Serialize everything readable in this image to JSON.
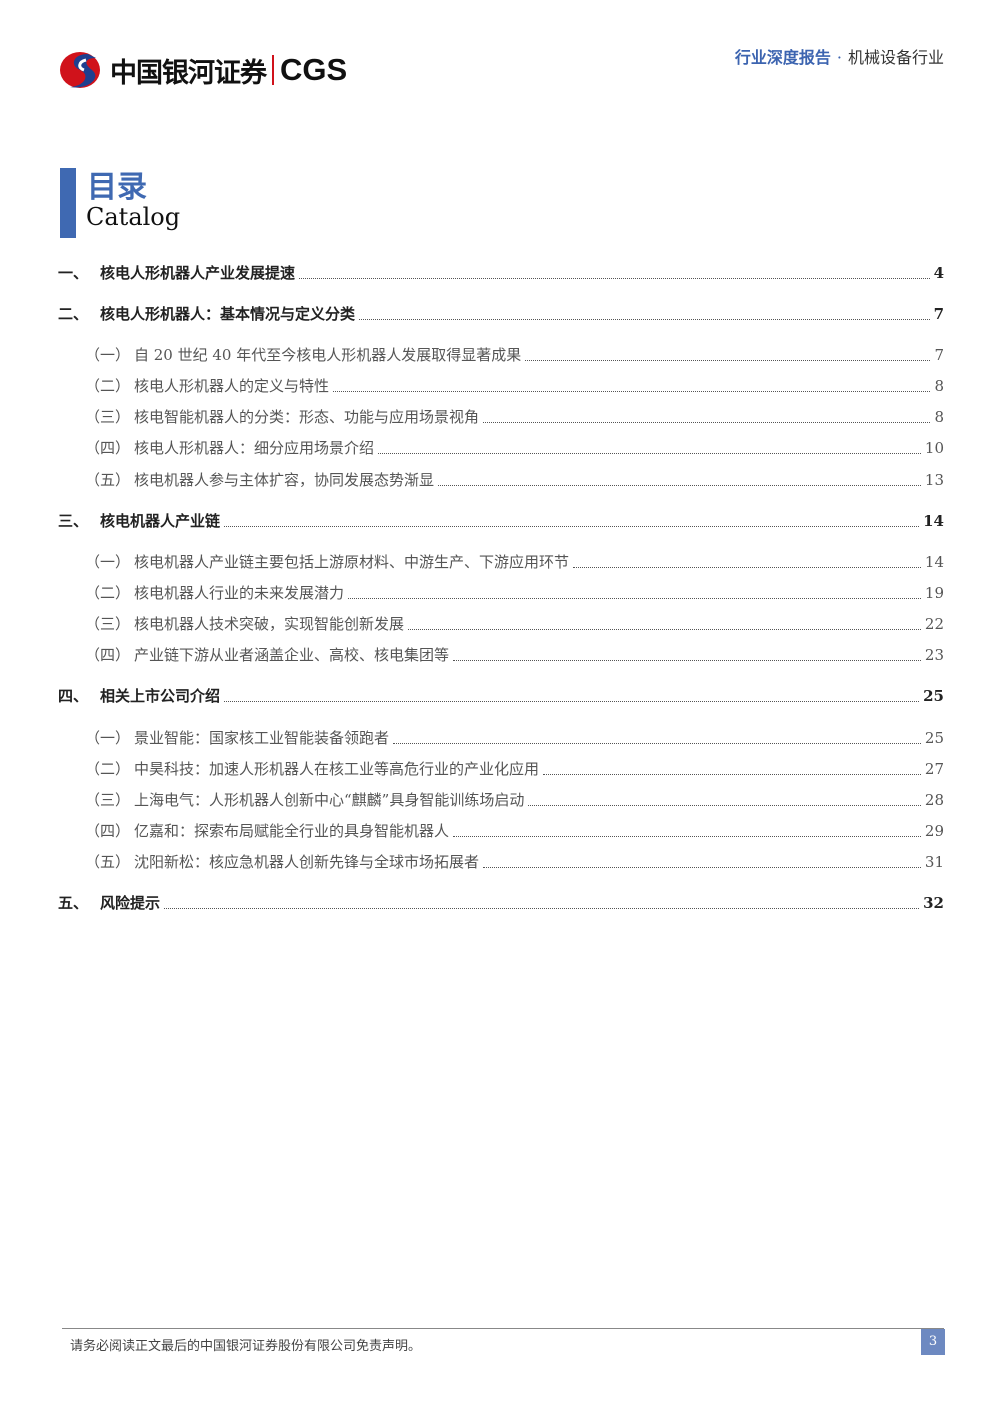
{
  "header": {
    "logo_cn": "中国银河证券",
    "logo_en": "CGS",
    "report_type": "行业深度报告",
    "separator": "·",
    "industry": "机械设备行业"
  },
  "title": {
    "cn": "目录",
    "en": "Catalog"
  },
  "toc": [
    {
      "level": 1,
      "num": "一、",
      "text": "核电人形机器人产业发展提速",
      "page": "4"
    },
    {
      "level": 1,
      "num": "二、",
      "text": "核电人形机器人：基本情况与定义分类",
      "page": "7"
    },
    {
      "level": 2,
      "num": "（一）",
      "text": "自 20 世纪 40 年代至今核电人形机器人发展取得显著成果",
      "page": "7"
    },
    {
      "level": 2,
      "num": "（二）",
      "text": "核电人形机器人的定义与特性",
      "page": "8"
    },
    {
      "level": 2,
      "num": "（三）",
      "text": "核电智能机器人的分类：形态、功能与应用场景视角",
      "page": "8"
    },
    {
      "level": 2,
      "num": "（四）",
      "text": "核电人形机器人：细分应用场景介绍",
      "page": "10"
    },
    {
      "level": 2,
      "num": "（五）",
      "text": "核电机器人参与主体扩容，协同发展态势渐显",
      "page": "13"
    },
    {
      "level": 1,
      "num": "三、",
      "text": "核电机器人产业链",
      "page": "14"
    },
    {
      "level": 2,
      "num": "（一）",
      "text": "核电机器人产业链主要包括上游原材料、中游生产、下游应用环节",
      "page": "14"
    },
    {
      "level": 2,
      "num": "（二）",
      "text": "核电机器人行业的未来发展潜力",
      "page": "19"
    },
    {
      "level": 2,
      "num": "（三）",
      "text": "核电机器人技术突破，实现智能创新发展",
      "page": "22"
    },
    {
      "level": 2,
      "num": "（四）",
      "text": "产业链下游从业者涵盖企业、高校、核电集团等",
      "page": "23"
    },
    {
      "level": 1,
      "num": "四、",
      "text": "相关上市公司介绍",
      "page": "25"
    },
    {
      "level": 2,
      "num": "（一）",
      "text": "景业智能：国家核工业智能装备领跑者",
      "page": "25"
    },
    {
      "level": 2,
      "num": "（二）",
      "text": "中昊科技：加速人形机器人在核工业等高危行业的产业化应用",
      "page": "27"
    },
    {
      "level": 2,
      "num": "（三）",
      "text": "上海电气：人形机器人创新中心“麒麟”具身智能训练场启动",
      "page": "28"
    },
    {
      "level": 2,
      "num": "（四）",
      "text": "亿嘉和：探索布局赋能全行业的具身智能机器人",
      "page": "29"
    },
    {
      "level": 2,
      "num": "（五）",
      "text": "沈阳新松：核应急机器人创新先锋与全球市场拓展者",
      "page": "31"
    },
    {
      "level": 1,
      "num": "五、",
      "text": "风险提示",
      "page": "32"
    }
  ],
  "footer": {
    "disclaimer": "请务必阅读正文最后的中国银河证券股份有限公司免责声明。",
    "page": "3"
  },
  "colors": {
    "accent": "#3f69b2",
    "logo_red": "#d0121b",
    "logo_blue": "#1f3f8f"
  }
}
